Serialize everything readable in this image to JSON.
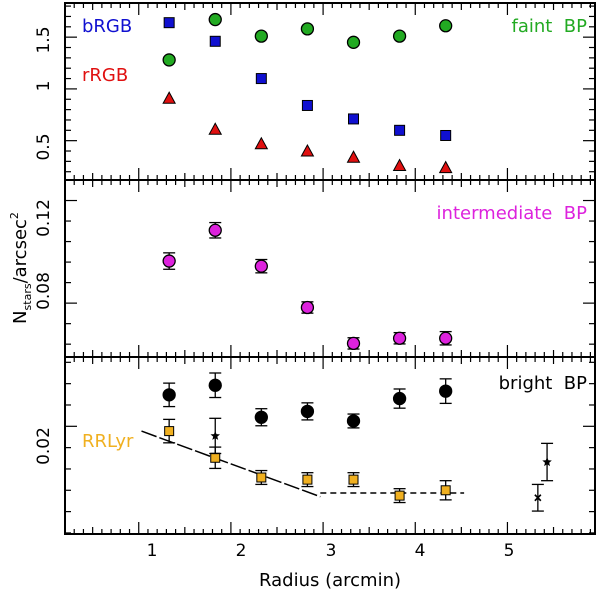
{
  "chart_data": {
    "type": "scatter",
    "xlabel": "Radius (arcmin)",
    "ylabel_main": "N",
    "ylabel_sub": "stars",
    "ylabel_tail": "/arcsec",
    "ylabel_sup": "2",
    "xlim": [
      0.2,
      5.95
    ],
    "xticks_major": [
      1,
      2,
      3,
      4,
      5
    ],
    "x_tick_labels": [
      "1",
      "2",
      "3",
      "4",
      "5"
    ],
    "panels": [
      {
        "id": "top",
        "ylim": [
          0.12,
          1.83
        ],
        "yticks_major": [
          0.5,
          1.0,
          1.5
        ],
        "y_tick_labels": [
          "0.5",
          "1",
          "1.5"
        ],
        "series": [
          {
            "name": "bRGB",
            "marker": "square",
            "color": "#1010d0",
            "x": [
              1.33,
              1.83,
              2.33,
              2.83,
              3.33,
              3.83,
              4.33
            ],
            "y": [
              1.64,
              1.46,
              1.1,
              0.84,
              0.71,
              0.6,
              0.55
            ]
          },
          {
            "name": "faint BP",
            "marker": "circle",
            "color": "#22aa22",
            "x": [
              1.33,
              1.83,
              2.33,
              2.83,
              3.33,
              3.83,
              4.33
            ],
            "y": [
              1.28,
              1.67,
              1.51,
              1.58,
              1.45,
              1.51,
              1.61
            ]
          },
          {
            "name": "rRGB",
            "marker": "triangle",
            "color": "#e01010",
            "x": [
              1.33,
              1.83,
              2.33,
              2.83,
              3.33,
              3.83,
              4.33
            ],
            "y": [
              0.91,
              0.61,
              0.47,
              0.4,
              0.34,
              0.26,
              0.24
            ]
          }
        ],
        "legend": [
          {
            "text": "bRGB",
            "color": "#1010d0",
            "pos": "top-left"
          },
          {
            "text": "rRGB",
            "color": "#e01010",
            "pos": "mid-left"
          },
          {
            "text": "faint  BP",
            "color": "#22aa22",
            "pos": "top-right"
          }
        ]
      },
      {
        "id": "middle",
        "ylim": [
          0.059,
          0.128
        ],
        "yticks_major": [
          0.08,
          0.12
        ],
        "y_tick_labels": [
          "0.08",
          "0.12"
        ],
        "series": [
          {
            "name": "intermediate BP",
            "marker": "circle",
            "color": "#dd22dd",
            "x": [
              1.33,
              1.83,
              2.33,
              2.83,
              3.33,
              3.83,
              4.33
            ],
            "y": [
              0.0964,
              0.1084,
              0.0944,
              0.0783,
              0.0643,
              0.0663,
              0.0663
            ],
            "err": [
              0.0032,
              0.003,
              0.0026,
              0.0022,
              0.0022,
              0.0022,
              0.0026
            ]
          }
        ],
        "legend": [
          {
            "text": "intermediate  BP",
            "color": "#dd22dd",
            "pos": "top-right"
          }
        ]
      },
      {
        "id": "bottom",
        "ylim": [
          -0.0002,
          0.033
        ],
        "yticks_major": [
          0.02
        ],
        "y_tick_labels": [
          "0.02"
        ],
        "series": [
          {
            "name": "bright BP",
            "marker": "circle",
            "color": "#000000",
            "x": [
              1.33,
              1.83,
              2.33,
              2.83,
              3.33,
              3.83,
              4.33
            ],
            "y": [
              0.0259,
              0.0277,
              0.0217,
              0.0228,
              0.021,
              0.0252,
              0.0266
            ],
            "err": [
              0.0022,
              0.0023,
              0.0016,
              0.0016,
              0.0013,
              0.0018,
              0.0023
            ]
          },
          {
            "name": "RRLyr",
            "marker": "square",
            "color": "#f0b020",
            "x": [
              1.33,
              1.83,
              2.33,
              2.83,
              3.33,
              3.83,
              4.33
            ],
            "y": [
              0.0191,
              0.0141,
              0.0104,
              0.01,
              0.01,
              0.007,
              0.008
            ],
            "err": [
              0.0022,
              0.002,
              0.0013,
              0.0013,
              0.0013,
              0.0013,
              0.0018
            ]
          },
          {
            "name": "star symbol",
            "marker": "star",
            "color": "#000000",
            "x": [
              1.83,
              5.43
            ],
            "y": [
              0.0182,
              0.0133
            ],
            "err": [
              0.0033,
              0.0035
            ]
          },
          {
            "name": "cross symbol",
            "marker": "cross",
            "color": "#000000",
            "x": [
              5.33
            ],
            "y": [
              0.0066
            ],
            "err": [
              0.0025
            ]
          }
        ],
        "lines": [
          {
            "style": "long-dash",
            "x": [
              1.03,
              2.97
            ],
            "y": [
              0.0191,
              0.0068
            ]
          },
          {
            "style": "dashed",
            "x": [
              2.97,
              4.53
            ],
            "y": [
              0.0075,
              0.0075
            ]
          }
        ],
        "legend": [
          {
            "text": "bright  BP",
            "color": "#000000",
            "pos": "top-right"
          },
          {
            "text": "RRLyr",
            "color": "#f0b020",
            "pos": "mid-left"
          }
        ]
      }
    ]
  }
}
